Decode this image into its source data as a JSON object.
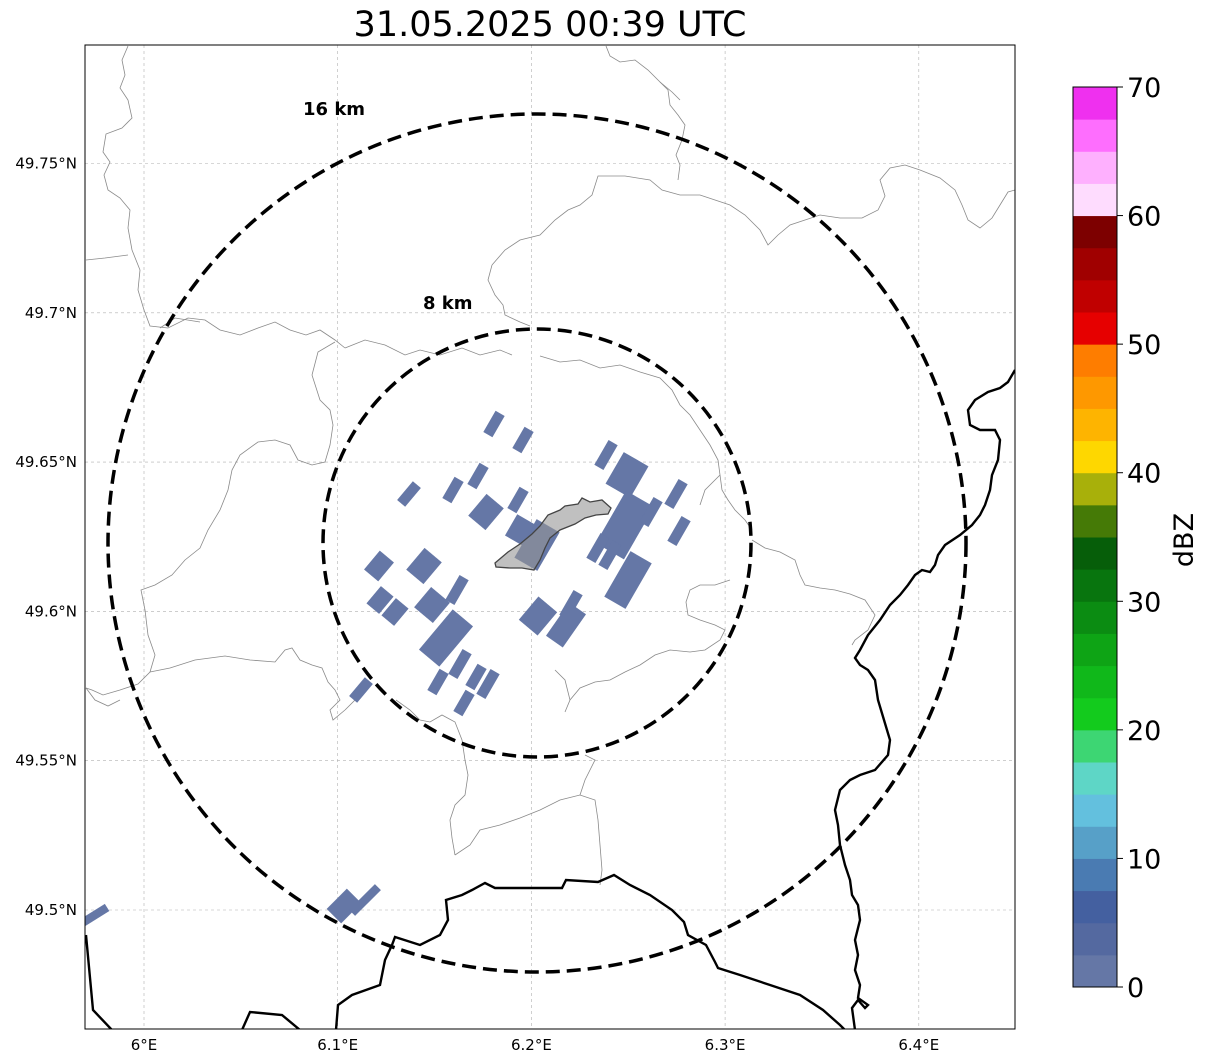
{
  "title": "31.05.2025 00:39 UTC",
  "map": {
    "lon_range": [
      5.97,
      6.45
    ],
    "lat_range": [
      49.46,
      49.79
    ],
    "x_ticks": [
      {
        "value": 6.0,
        "label": "6°E"
      },
      {
        "value": 6.1,
        "label": "6.1°E"
      },
      {
        "value": 6.2,
        "label": "6.2°E"
      },
      {
        "value": 6.3,
        "label": "6.3°E"
      },
      {
        "value": 6.4,
        "label": "6.4°E"
      }
    ],
    "y_ticks": [
      {
        "value": 49.5,
        "label": "49.5°N"
      },
      {
        "value": 49.55,
        "label": "49.55°N"
      },
      {
        "value": 49.6,
        "label": "49.6°N"
      },
      {
        "value": 49.65,
        "label": "49.65°N"
      },
      {
        "value": 49.7,
        "label": "49.7°N"
      },
      {
        "value": 49.75,
        "label": "49.75°N"
      }
    ],
    "gridlines": true,
    "center": {
      "lon": 6.205,
      "lat": 49.623
    },
    "rings": [
      {
        "radius_km": 8,
        "label": "8 km"
      },
      {
        "radius_km": 16,
        "label": "16 km"
      }
    ],
    "echo_color": "#6577a6"
  },
  "colorbar": {
    "label": "dBZ",
    "min": 0,
    "max": 70,
    "step": 2.5,
    "ticks": [
      {
        "value": 0,
        "label": "0"
      },
      {
        "value": 10,
        "label": "10"
      },
      {
        "value": 20,
        "label": "20"
      },
      {
        "value": 30,
        "label": "30"
      },
      {
        "value": 40,
        "label": "40"
      },
      {
        "value": 50,
        "label": "50"
      },
      {
        "value": 60,
        "label": "60"
      },
      {
        "value": 70,
        "label": "70"
      }
    ],
    "colors": [
      "#6577a6",
      "#5469a0",
      "#4460a0",
      "#4a7bb2",
      "#57a0c8",
      "#63c0de",
      "#5ed6c6",
      "#3dd673",
      "#13cb1d",
      "#10b81a",
      "#0ea415",
      "#0b8c12",
      "#08750e",
      "#065e09",
      "#457a06",
      "#a8b00a",
      "#fed700",
      "#feb400",
      "#fe9800",
      "#fe7d00",
      "#e60000",
      "#c00000",
      "#a00000",
      "#7d0000",
      "#fedcfe",
      "#feb0fe",
      "#fe6efe",
      "#ef30ef"
    ]
  }
}
